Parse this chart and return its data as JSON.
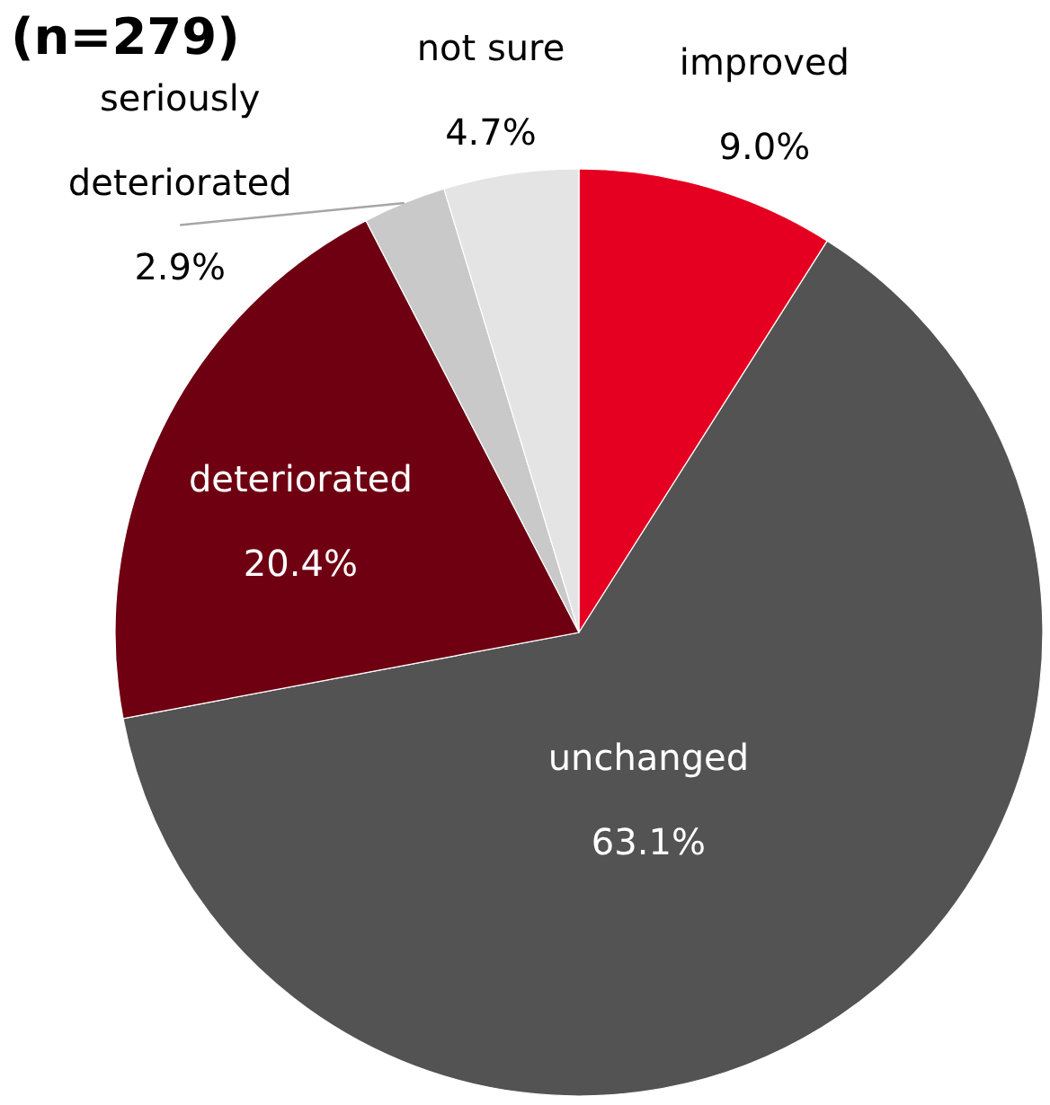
{
  "chart_data": {
    "type": "pie",
    "title": "(n=279)",
    "categories": [
      "improved",
      "unchanged",
      "deteriorated",
      "seriously deteriorated",
      "not sure"
    ],
    "values": [
      9.0,
      63.1,
      20.4,
      2.9,
      4.7
    ],
    "colors": [
      "#e50021",
      "#535353",
      "#6e0012",
      "#c9c9c9",
      "#e4e4e4"
    ],
    "value_labels": [
      "9.0%",
      "63.1%",
      "20.4%",
      "2.9%",
      "4.7%"
    ]
  }
}
